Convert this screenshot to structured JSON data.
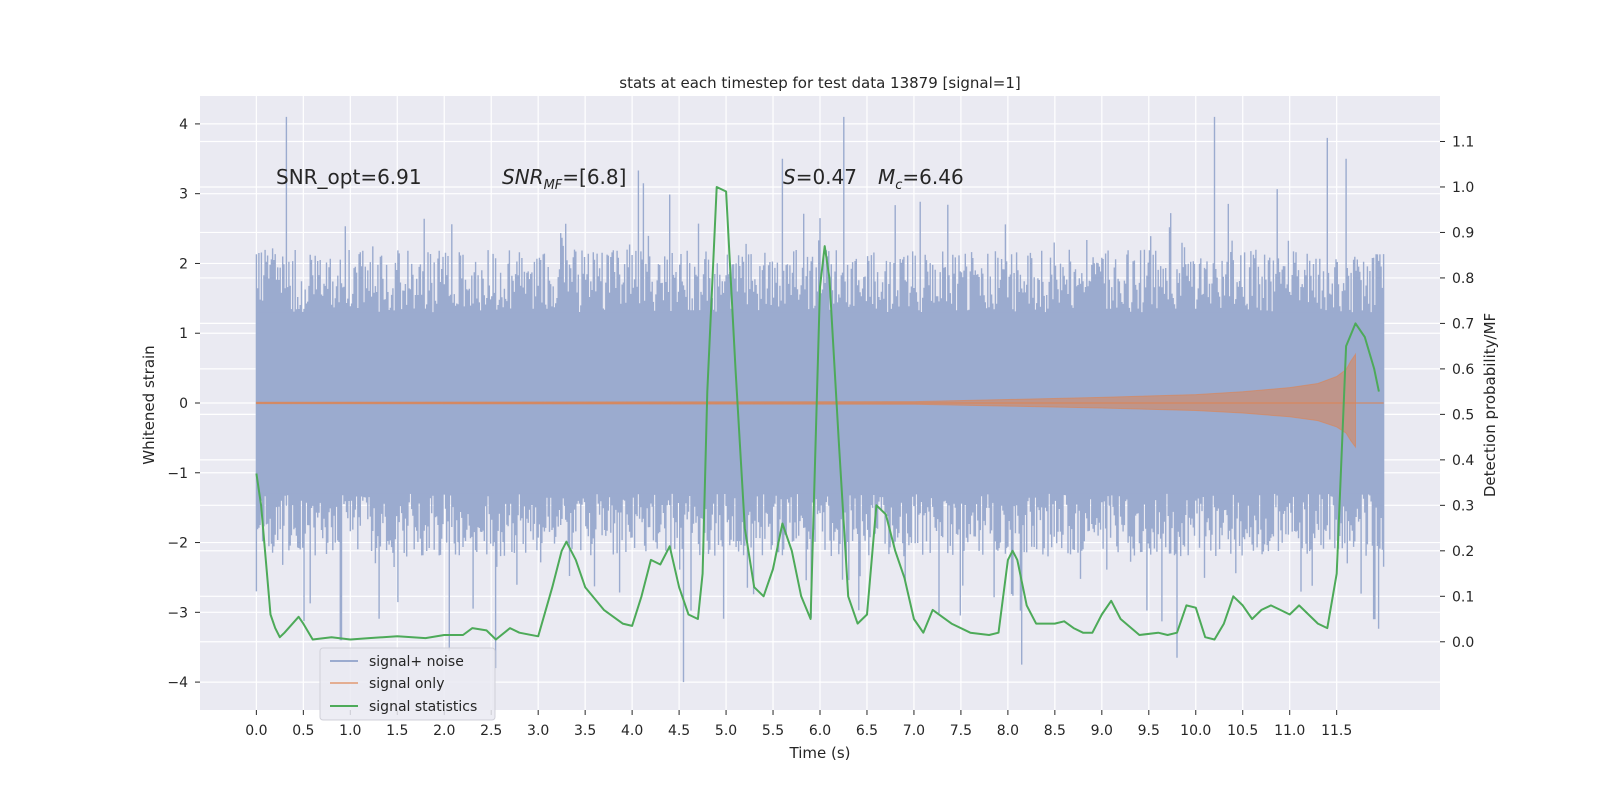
{
  "chart_data": {
    "type": "line",
    "title": "stats at each timestep for test data 13879 [signal=1]",
    "xlabel": "Time (s)",
    "ylabel": "Whitened strain",
    "ylabel_right": "Detection probability/MF",
    "xlim": [
      -0.6,
      12.6
    ],
    "ylim": [
      -4.4,
      4.4
    ],
    "ylim_right": [
      -0.15,
      1.2
    ],
    "x_ticks": [
      "0.0",
      "0.5",
      "1.0",
      "1.5",
      "2.0",
      "2.5",
      "3.0",
      "3.5",
      "4.0",
      "4.5",
      "5.0",
      "5.5",
      "6.0",
      "6.5",
      "7.0",
      "7.5",
      "8.0",
      "8.5",
      "9.0",
      "9.5",
      "10.0",
      "10.5",
      "11.0",
      "11.5"
    ],
    "y_ticks": [
      "4",
      "3",
      "2",
      "1",
      "0",
      "−1",
      "−2",
      "−3",
      "−4"
    ],
    "y_ticks_right": [
      "1.1",
      "1.0",
      "0.9",
      "0.8",
      "0.7",
      "0.6",
      "0.5",
      "0.4",
      "0.3",
      "0.2",
      "0.1",
      "0.0"
    ],
    "grid": true,
    "legend_position": "bottom-left",
    "annotations": {
      "snr_opt": "SNR_opt=6.91",
      "snr_mf_main": "SNR",
      "snr_mf_sub": "MF",
      "snr_mf_rest": "=[6.8]",
      "s_main": "S",
      "s_rest": "=0.47",
      "mc_main": "M",
      "mc_sub": "c",
      "mc_rest": "=6.46"
    },
    "series": [
      {
        "name": "signal+ noise",
        "color": "#9babcf",
        "axis": "left",
        "x_range": [
          0.0,
          12.0
        ],
        "envelope_base": 1.3,
        "peaks": [
          {
            "x": 0.32,
            "y": 4.1
          },
          {
            "x": 0.0,
            "y": -2.7
          },
          {
            "x": 0.9,
            "y": -3.4
          },
          {
            "x": 2.05,
            "y": -3.55
          },
          {
            "x": 2.55,
            "y": -3.8
          },
          {
            "x": 4.55,
            "y": -4.0
          },
          {
            "x": 5.6,
            "y": 3.5
          },
          {
            "x": 6.25,
            "y": 4.1
          },
          {
            "x": 8.15,
            "y": -3.75
          },
          {
            "x": 9.8,
            "y": -3.65
          },
          {
            "x": 10.2,
            "y": 4.1
          },
          {
            "x": 11.4,
            "y": 3.8
          },
          {
            "x": 11.6,
            "y": 3.5
          },
          {
            "x": 11.9,
            "y": -3.1
          }
        ]
      },
      {
        "name": "signal only",
        "color": "#dd8452",
        "axis": "left",
        "x": [
          0.0,
          7.0,
          8.0,
          9.0,
          10.0,
          10.5,
          11.0,
          11.3,
          11.5,
          11.6,
          11.65,
          11.7
        ],
        "amplitude": [
          0.01,
          0.02,
          0.05,
          0.08,
          0.12,
          0.16,
          0.22,
          0.28,
          0.38,
          0.48,
          0.6,
          0.7
        ]
      },
      {
        "name": "signal statistics",
        "color": "#4daa59",
        "axis": "right",
        "x": [
          0.0,
          0.05,
          0.1,
          0.15,
          0.2,
          0.25,
          0.3,
          0.45,
          0.5,
          0.6,
          0.8,
          1.0,
          1.2,
          1.5,
          1.8,
          2.0,
          2.2,
          2.3,
          2.45,
          2.55,
          2.7,
          2.8,
          3.0,
          3.15,
          3.25,
          3.3,
          3.4,
          3.5,
          3.7,
          3.9,
          4.0,
          4.1,
          4.2,
          4.3,
          4.4,
          4.5,
          4.6,
          4.7,
          4.75,
          4.8,
          4.9,
          5.0,
          5.1,
          5.2,
          5.3,
          5.4,
          5.5,
          5.6,
          5.7,
          5.8,
          5.9,
          6.0,
          6.05,
          6.1,
          6.2,
          6.3,
          6.4,
          6.5,
          6.6,
          6.7,
          6.8,
          6.9,
          7.0,
          7.1,
          7.2,
          7.4,
          7.6,
          7.8,
          7.9,
          8.0,
          8.05,
          8.1,
          8.2,
          8.3,
          8.4,
          8.5,
          8.6,
          8.7,
          8.8,
          8.9,
          9.0,
          9.1,
          9.2,
          9.4,
          9.6,
          9.7,
          9.8,
          9.9,
          10.0,
          10.1,
          10.2,
          10.3,
          10.4,
          10.5,
          10.6,
          10.7,
          10.8,
          10.9,
          11.0,
          11.1,
          11.2,
          11.3,
          11.4,
          11.5,
          11.6,
          11.7,
          11.8,
          11.9,
          11.95
        ],
        "values": [
          0.37,
          0.3,
          0.18,
          0.06,
          0.03,
          0.01,
          0.02,
          0.055,
          0.04,
          0.005,
          0.01,
          0.005,
          0.008,
          0.012,
          0.008,
          0.015,
          0.015,
          0.03,
          0.025,
          0.005,
          0.03,
          0.02,
          0.012,
          0.12,
          0.2,
          0.22,
          0.18,
          0.12,
          0.07,
          0.04,
          0.035,
          0.1,
          0.18,
          0.17,
          0.21,
          0.12,
          0.06,
          0.05,
          0.15,
          0.55,
          1.0,
          0.99,
          0.6,
          0.25,
          0.12,
          0.1,
          0.16,
          0.26,
          0.2,
          0.1,
          0.05,
          0.78,
          0.87,
          0.8,
          0.44,
          0.1,
          0.04,
          0.06,
          0.3,
          0.28,
          0.2,
          0.14,
          0.05,
          0.02,
          0.07,
          0.04,
          0.02,
          0.015,
          0.02,
          0.18,
          0.2,
          0.18,
          0.08,
          0.04,
          0.04,
          0.04,
          0.045,
          0.03,
          0.02,
          0.02,
          0.06,
          0.09,
          0.05,
          0.015,
          0.02,
          0.015,
          0.02,
          0.08,
          0.075,
          0.01,
          0.005,
          0.04,
          0.1,
          0.08,
          0.05,
          0.07,
          0.08,
          0.07,
          0.06,
          0.08,
          0.06,
          0.04,
          0.03,
          0.15,
          0.65,
          0.7,
          0.67,
          0.6,
          0.55
        ]
      }
    ]
  }
}
